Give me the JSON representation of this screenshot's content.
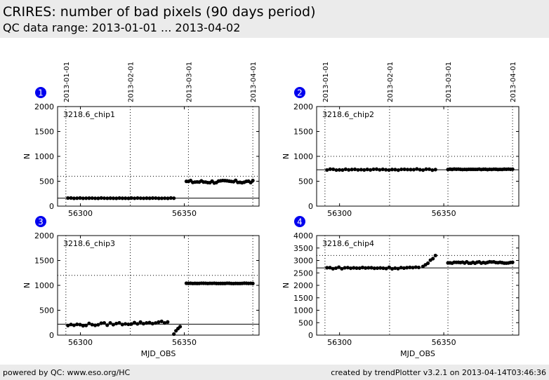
{
  "header": {
    "title": "CRIRES: number of bad pixels (90 days period)",
    "subtitle": "QC data range: 2013-01-01 ... 2013-04-02"
  },
  "footer": {
    "left": "powered by QC: www.eso.org/HC",
    "right": "created by trendPlotter v3.2.1 on 2013-04-14T03:46:36"
  },
  "colors": {
    "marker": "#000000",
    "badge": "#0000ee",
    "header_bg": "#ebebeb"
  },
  "date_axis": {
    "ticks": [
      "2013-01-01",
      "2013-02-01",
      "2013-03-01",
      "2013-04-01"
    ],
    "tick_mjd": [
      56293,
      56324,
      56352,
      56383
    ]
  },
  "chart_data": [
    {
      "type": "scatter",
      "badge": "1",
      "label": "3218.6_chip1",
      "ylabel": "N",
      "xlabel": "",
      "xlim": [
        56289,
        56386
      ],
      "ylim": [
        0,
        2000
      ],
      "yticks": [
        "0",
        "500",
        "1000",
        "1500",
        "2000"
      ],
      "xticks": [
        "56300",
        "56350"
      ],
      "xtick_values": [
        56300,
        56350
      ],
      "ref_line": 160,
      "threshold_line": 600,
      "segments": [
        {
          "x_start": 56294,
          "x_end": 56345,
          "n": 36,
          "base": 160,
          "noise": 4
        },
        {
          "x_start": 56351,
          "x_end": 56383,
          "n": 32,
          "base": 490,
          "noise": 30
        }
      ]
    },
    {
      "type": "scatter",
      "badge": "2",
      "label": "3218.6_chip2",
      "ylabel": "N",
      "xlabel": "",
      "xlim": [
        56289,
        56386
      ],
      "ylim": [
        0,
        2000
      ],
      "yticks": [
        "0",
        "500",
        "1000",
        "1500",
        "2000"
      ],
      "xticks": [
        "56300",
        "56350"
      ],
      "xtick_values": [
        56300,
        56350
      ],
      "ref_line": 730,
      "threshold_line": 1000,
      "segments": [
        {
          "x_start": 56294,
          "x_end": 56346,
          "n": 36,
          "base": 735,
          "noise": 12
        },
        {
          "x_start": 56352,
          "x_end": 56383,
          "n": 32,
          "base": 740,
          "noise": 6
        }
      ]
    },
    {
      "type": "scatter",
      "badge": "3",
      "label": "3218.6_chip3",
      "ylabel": "N",
      "xlabel": "MJD_OBS",
      "xlim": [
        56289,
        56386
      ],
      "ylim": [
        0,
        2000
      ],
      "yticks": [
        "0",
        "500",
        "1000",
        "1500",
        "2000"
      ],
      "xticks": [
        "56300",
        "56350"
      ],
      "xtick_values": [
        56300,
        56350
      ],
      "ref_line": 220,
      "threshold_line": 1200,
      "segments": [
        {
          "x_start": 56294,
          "x_end": 56342,
          "n": 34,
          "base": 200,
          "noise": 25,
          "trend": 60
        },
        {
          "x_start": 56345,
          "x_end": 56348,
          "n": 4,
          "base": 50,
          "noise": 30,
          "trend": 100
        },
        {
          "x_start": 56351,
          "x_end": 56383,
          "n": 32,
          "base": 1040,
          "noise": 4
        }
      ]
    },
    {
      "type": "scatter",
      "badge": "4",
      "label": "3218.6_chip4",
      "ylabel": "N",
      "xlabel": "MJD_OBS",
      "xlim": [
        56289,
        56386
      ],
      "ylim": [
        0,
        4000
      ],
      "yticks": [
        "0",
        "500",
        "1000",
        "1500",
        "2000",
        "2500",
        "3000",
        "3500",
        "4000"
      ],
      "xticks": [
        "56300",
        "56350"
      ],
      "xtick_values": [
        56300,
        56350
      ],
      "ref_line": 2700,
      "threshold_line": 3200,
      "segments": [
        {
          "x_start": 56294,
          "x_end": 56338,
          "n": 32,
          "base": 2700,
          "noise": 35
        },
        {
          "x_start": 56340,
          "x_end": 56346,
          "n": 6,
          "base": 2750,
          "noise": 30,
          "trend": 420
        },
        {
          "x_start": 56352,
          "x_end": 56383,
          "n": 32,
          "base": 2920,
          "noise": 30
        }
      ]
    }
  ]
}
